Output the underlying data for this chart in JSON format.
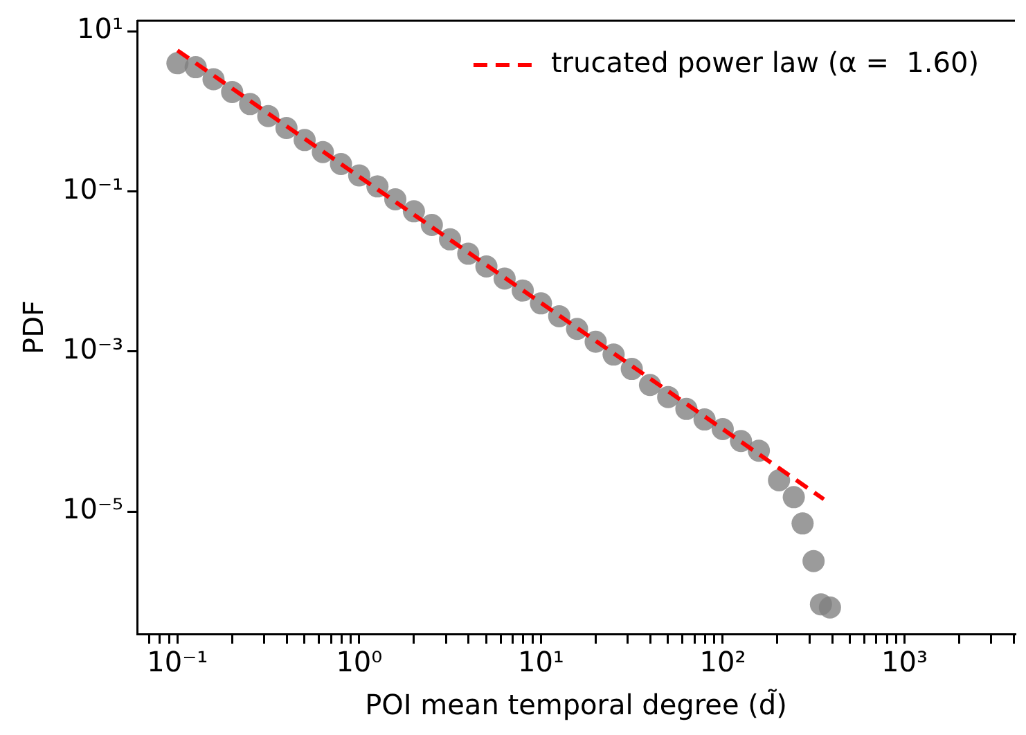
{
  "chart_data": {
    "type": "scatter",
    "xlabel": "POI mean temporal degree (d̃)",
    "ylabel": "PDF",
    "log": "xy",
    "grid": false,
    "legend": "top right",
    "marker": "circle",
    "xlim": [
      0.06,
      4050
    ],
    "ylim": [
      2.95e-07,
      13.5
    ],
    "xticks": [
      {
        "value": 0.07,
        "label": null
      },
      {
        "value": 0.08,
        "label": null
      },
      {
        "value": 0.09,
        "label": null
      },
      {
        "value": 0.1,
        "label": "10⁻¹"
      },
      {
        "value": 0.2,
        "label": null
      },
      {
        "value": 0.3,
        "label": null
      },
      {
        "value": 0.4,
        "label": null
      },
      {
        "value": 0.5,
        "label": null
      },
      {
        "value": 0.6,
        "label": null
      },
      {
        "value": 0.7,
        "label": null
      },
      {
        "value": 0.8,
        "label": null
      },
      {
        "value": 0.9,
        "label": null
      },
      {
        "value": 1,
        "label": "10⁰"
      },
      {
        "value": 2,
        "label": null
      },
      {
        "value": 3,
        "label": null
      },
      {
        "value": 4,
        "label": null
      },
      {
        "value": 5,
        "label": null
      },
      {
        "value": 6,
        "label": null
      },
      {
        "value": 7,
        "label": null
      },
      {
        "value": 8,
        "label": null
      },
      {
        "value": 9,
        "label": null
      },
      {
        "value": 10,
        "label": "10¹"
      },
      {
        "value": 20,
        "label": null
      },
      {
        "value": 30,
        "label": null
      },
      {
        "value": 40,
        "label": null
      },
      {
        "value": 50,
        "label": null
      },
      {
        "value": 60,
        "label": null
      },
      {
        "value": 70,
        "label": null
      },
      {
        "value": 80,
        "label": null
      },
      {
        "value": 90,
        "label": null
      },
      {
        "value": 100,
        "label": "10²"
      },
      {
        "value": 200,
        "label": null
      },
      {
        "value": 300,
        "label": null
      },
      {
        "value": 400,
        "label": null
      },
      {
        "value": 500,
        "label": null
      },
      {
        "value": 600,
        "label": null
      },
      {
        "value": 700,
        "label": null
      },
      {
        "value": 800,
        "label": null
      },
      {
        "value": 900,
        "label": null
      },
      {
        "value": 1000,
        "label": "10³"
      },
      {
        "value": 2000,
        "label": null
      },
      {
        "value": 3000,
        "label": null
      },
      {
        "value": 4000,
        "label": null
      }
    ],
    "yticks": [
      {
        "value": 10,
        "label": "10¹"
      },
      {
        "value": 0.1,
        "label": "10⁻¹"
      },
      {
        "value": 0.001,
        "label": "10⁻³"
      },
      {
        "value": 1e-05,
        "label": "10⁻⁵"
      }
    ],
    "series": [
      {
        "type": "scatter",
        "color": "#808080",
        "x": [
          0.1,
          0.126,
          0.158,
          0.2,
          0.251,
          0.316,
          0.398,
          0.501,
          0.631,
          0.794,
          1,
          1.26,
          1.58,
          2,
          2.51,
          3.16,
          3.98,
          5.01,
          6.31,
          7.94,
          10,
          12.6,
          15.8,
          20,
          25.1,
          31.6,
          39.8,
          50.1,
          63.1,
          79.4,
          100,
          126,
          158,
          204,
          246,
          275,
          316,
          347,
          389
        ],
        "values": [
          3.98,
          3.55,
          2.51,
          1.74,
          1.23,
          0.871,
          0.617,
          0.437,
          0.309,
          0.219,
          0.158,
          0.115,
          0.0794,
          0.0562,
          0.038,
          0.0251,
          0.0166,
          0.0115,
          0.00813,
          0.00575,
          0.00398,
          0.00275,
          0.00191,
          0.00132,
          0.000912,
          0.000603,
          0.00038,
          0.000269,
          0.000191,
          0.000141,
          0.000107,
          7.59e-05,
          5.75e-05,
          2.45e-05,
          1.51e-05,
          7.08e-06,
          2.4e-06,
          6.92e-07,
          6.31e-07
        ]
      },
      {
        "type": "line",
        "name": "trucated power law (α =  1.60)",
        "color": "#ff0000",
        "line_style": "dashed",
        "marker": "none",
        "x": [
          0.1,
          360
        ],
        "values": [
          5.75,
          1.42e-05
        ]
      }
    ]
  }
}
